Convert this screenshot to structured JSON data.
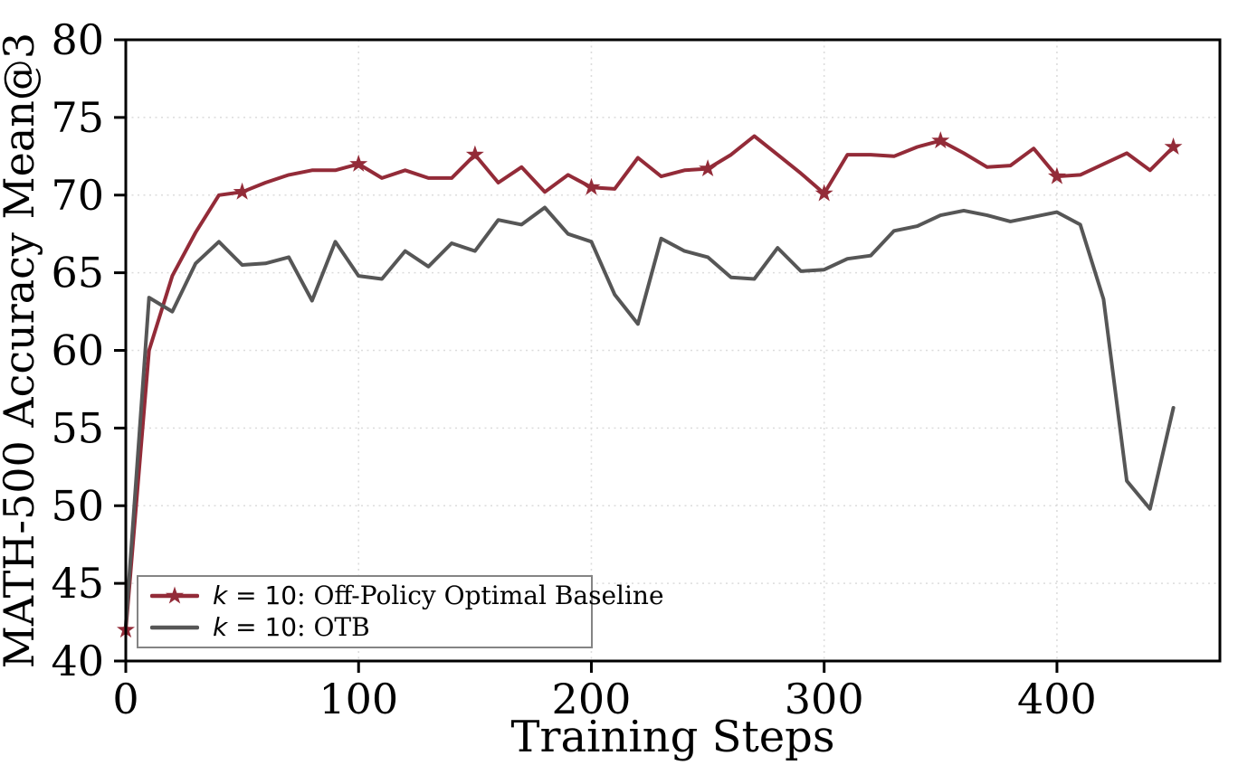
{
  "chart_data": {
    "type": "line",
    "title": "",
    "xlabel": "Training Steps",
    "ylabel": "MATH-500 Accuracy Mean@3",
    "xlim": [
      0,
      470
    ],
    "ylim": [
      40,
      80
    ],
    "x_ticks": [
      0,
      100,
      200,
      300,
      400
    ],
    "y_ticks": [
      40,
      45,
      50,
      55,
      60,
      65,
      70,
      75,
      80
    ],
    "grid": true,
    "grid_color": "#dcdcdc",
    "spine_color": "#000000",
    "tick_color": "#000000",
    "legend_position": "lower-left",
    "legend_border_color": "#848484",
    "x": [
      0,
      10,
      20,
      30,
      40,
      50,
      60,
      70,
      80,
      90,
      100,
      110,
      120,
      130,
      140,
      150,
      160,
      170,
      180,
      190,
      200,
      210,
      220,
      230,
      240,
      250,
      260,
      270,
      280,
      290,
      300,
      310,
      320,
      330,
      340,
      350,
      360,
      370,
      380,
      390,
      400,
      410,
      420,
      430,
      440,
      450
    ],
    "series": [
      {
        "id": "off-policy-optimal-baseline",
        "legend_var": "k",
        "legend_eq": " = 10",
        "legend_rest": ": Off-Policy Optimal Baseline",
        "color": "#932b38",
        "marker": "star",
        "marker_every": 5,
        "line_width": 4,
        "values": [
          42.0,
          60.0,
          64.8,
          67.6,
          70.0,
          70.2,
          70.8,
          71.3,
          71.6,
          71.6,
          72.0,
          71.1,
          71.6,
          71.1,
          71.1,
          72.6,
          70.8,
          71.8,
          70.2,
          71.3,
          70.5,
          70.4,
          72.4,
          71.2,
          71.6,
          71.7,
          72.6,
          73.8,
          72.6,
          71.4,
          70.1,
          72.6,
          72.6,
          72.5,
          73.1,
          73.5,
          72.7,
          71.8,
          71.9,
          73.0,
          71.2,
          71.3,
          72.0,
          72.7,
          71.6,
          73.1
        ]
      },
      {
        "id": "otb",
        "legend_var": "k",
        "legend_eq": " = 10",
        "legend_rest": ": OTB",
        "color": "#565656",
        "marker": "none",
        "marker_every": 0,
        "line_width": 4,
        "values": [
          42.3,
          63.4,
          62.5,
          65.6,
          67.0,
          65.5,
          65.6,
          66.0,
          63.2,
          67.0,
          64.8,
          64.6,
          66.4,
          65.4,
          66.9,
          66.4,
          68.4,
          68.1,
          69.2,
          67.5,
          67.0,
          63.6,
          61.7,
          67.2,
          66.4,
          66.0,
          64.7,
          64.6,
          66.6,
          65.1,
          65.2,
          65.9,
          66.1,
          67.7,
          68.0,
          68.7,
          69.0,
          68.7,
          68.3,
          68.6,
          68.9,
          68.1,
          63.3,
          51.6,
          49.8,
          56.3
        ]
      }
    ]
  }
}
